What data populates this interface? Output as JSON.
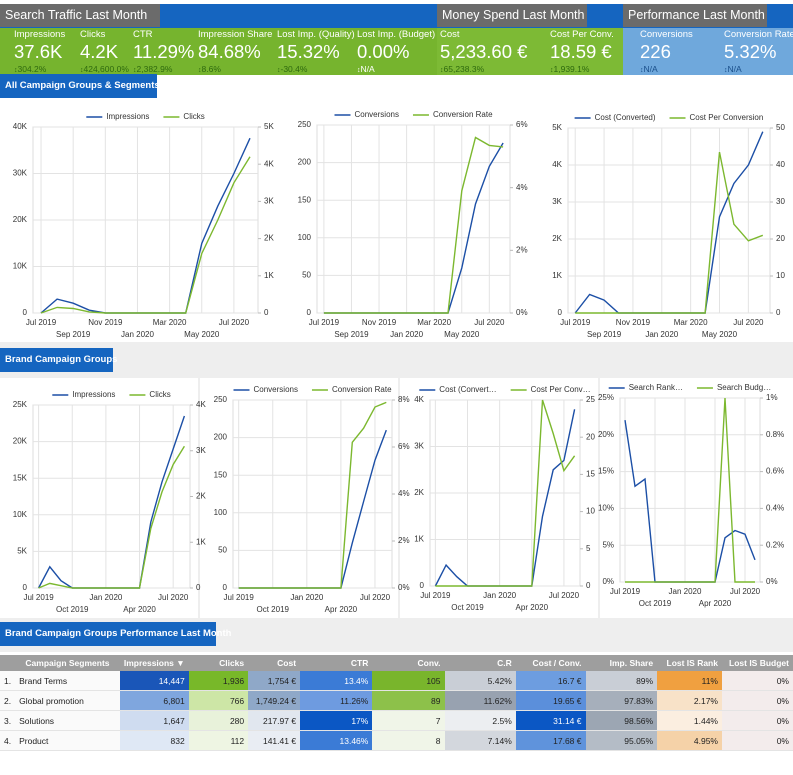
{
  "tabs": [
    "Search Traffic Last Month",
    "Money Spend Last Month",
    "Performance Last Month"
  ],
  "kpis": [
    {
      "label": "Impressions",
      "value": "37.6K",
      "change": "304.2%"
    },
    {
      "label": "Clicks",
      "value": "4.2K",
      "change": "424,600.0%"
    },
    {
      "label": "CTR",
      "value": "11.29%",
      "change": "2,382.9%"
    },
    {
      "label": "Impression Share",
      "value": "84.68%",
      "change": "8.6%"
    },
    {
      "label": "Lost Imp. (Quality)",
      "value": "15.32%",
      "change": "-30.4%"
    },
    {
      "label": "Lost Imp. (Budget)",
      "value": "0.00%",
      "change": "N/A"
    },
    {
      "label": "Cost",
      "value": "5,233.60 €",
      "change": "65,238.3%"
    },
    {
      "label": "Cost Per Conv.",
      "value": "18.59 €",
      "change": "1,939.1%"
    },
    {
      "label": "Conversions",
      "value": "226",
      "change": "N/A"
    },
    {
      "label": "Conversion Rate",
      "value": "5.32%",
      "change": "N/A"
    }
  ],
  "sections": [
    "All Campaign Groups & Segments",
    "Brand Campaign Groups",
    "Brand Campaign Groups Performance Last Month"
  ],
  "chart_data": [
    {
      "type": "line",
      "legend": "top",
      "grid": true,
      "categories": [
        "Jul 2019",
        null,
        "Sep 2019",
        null,
        "Nov 2019",
        null,
        "Jan 2020",
        null,
        "Mar 2020",
        null,
        "May 2020",
        null,
        "Jul 2020",
        null
      ],
      "ylim": [
        0,
        40000
      ],
      "yticks": [
        0,
        {
          "value": 10000,
          "label": "10K"
        },
        {
          "value": 20000,
          "label": "20K"
        },
        {
          "value": 30000,
          "label": "30K"
        },
        {
          "value": 40000,
          "label": "40K"
        }
      ],
      "y2lim": [
        0,
        5000
      ],
      "y2ticks": [
        0,
        {
          "value": 1000,
          "label": "1K"
        },
        {
          "value": 2000,
          "label": "2K"
        },
        {
          "value": 3000,
          "label": "3K"
        },
        {
          "value": 4000,
          "label": "4K"
        },
        {
          "value": 5000,
          "label": "5K"
        }
      ],
      "series": [
        {
          "name": "Impressions",
          "color": "#1c4fa6",
          "values": [
            0,
            3000,
            2100,
            600,
            0,
            0,
            0,
            0,
            0,
            0,
            15000,
            23000,
            30000,
            37600
          ]
        },
        {
          "name": "Clicks",
          "color": "#7cb82f",
          "axis": "y2",
          "values": [
            0,
            150,
            120,
            30,
            0,
            0,
            0,
            0,
            0,
            0,
            1600,
            2500,
            3500,
            4200
          ]
        }
      ]
    },
    {
      "type": "line",
      "legend": "top",
      "grid": true,
      "categories": [
        "Jul 2019",
        null,
        "Sep 2019",
        null,
        "Nov 2019",
        null,
        "Jan 2020",
        null,
        "Mar 2020",
        null,
        "May 2020",
        null,
        "Jul 2020",
        null
      ],
      "ylim": [
        0,
        250
      ],
      "yticks": [
        0,
        50,
        100,
        150,
        200,
        250
      ],
      "y2lim": [
        0,
        6
      ],
      "y2ticks": [
        {
          "value": 0,
          "label": "0%"
        },
        {
          "value": 2,
          "label": "2%"
        },
        {
          "value": 4,
          "label": "4%"
        },
        {
          "value": 6,
          "label": "6%"
        }
      ],
      "series": [
        {
          "name": "Conversions",
          "color": "#1c4fa6",
          "values": [
            0,
            0,
            0,
            0,
            0,
            0,
            0,
            0,
            0,
            0,
            60,
            145,
            195,
            226
          ]
        },
        {
          "name": "Conversion Rate",
          "color": "#7cb82f",
          "axis": "y2",
          "values": [
            0,
            0,
            0,
            0,
            0,
            0,
            0,
            0,
            0,
            0,
            3.9,
            5.6,
            5.35,
            5.3
          ]
        }
      ]
    },
    {
      "type": "line",
      "legend": "top",
      "grid": true,
      "categories": [
        "Jul 2019",
        null,
        "Sep 2019",
        null,
        "Nov 2019",
        null,
        "Jan 2020",
        null,
        "Mar 2020",
        null,
        "May 2020",
        null,
        "Jul 2020",
        null
      ],
      "ylim": [
        0,
        5000
      ],
      "yticks": [
        0,
        {
          "value": 1000,
          "label": "1K"
        },
        {
          "value": 2000,
          "label": "2K"
        },
        {
          "value": 3000,
          "label": "3K"
        },
        {
          "value": 4000,
          "label": "4K"
        },
        {
          "value": 5000,
          "label": "5K"
        }
      ],
      "y2lim": [
        0,
        50
      ],
      "y2ticks": [
        0,
        10,
        20,
        30,
        40,
        50
      ],
      "series": [
        {
          "name": "Cost (Converted)",
          "color": "#1c4fa6",
          "values": [
            0,
            500,
            350,
            0,
            0,
            0,
            0,
            0,
            0,
            0,
            2600,
            3500,
            4000,
            4900
          ]
        },
        {
          "name": "Cost Per Conversion",
          "color": "#7cb82f",
          "axis": "y2",
          "values": [
            0,
            0,
            0,
            0,
            0,
            0,
            0,
            0,
            0,
            0,
            43.5,
            24,
            19.5,
            21
          ]
        }
      ]
    },
    {
      "type": "line",
      "legend": "top",
      "grid": true,
      "categories": [
        "Jul 2019",
        null,
        null,
        "Oct 2019",
        null,
        null,
        "Jan 2020",
        null,
        null,
        "Apr 2020",
        null,
        null,
        "Jul 2020",
        null
      ],
      "ylim": [
        0,
        25000
      ],
      "yticks": [
        0,
        {
          "value": 5000,
          "label": "5K"
        },
        {
          "value": 10000,
          "label": "10K"
        },
        {
          "value": 15000,
          "label": "15K"
        },
        {
          "value": 20000,
          "label": "20K"
        },
        {
          "value": 25000,
          "label": "25K"
        }
      ],
      "y2lim": [
        0,
        4000
      ],
      "y2ticks": [
        0,
        {
          "value": 1000,
          "label": "1K"
        },
        {
          "value": 2000,
          "label": "2K"
        },
        {
          "value": 3000,
          "label": "3K"
        },
        {
          "value": 4000,
          "label": "4K"
        }
      ],
      "series": [
        {
          "name": "Impressions",
          "color": "#1c4fa6",
          "values": [
            0,
            2900,
            1000,
            0,
            0,
            0,
            0,
            0,
            0,
            0,
            9000,
            14500,
            19000,
            23500
          ]
        },
        {
          "name": "Clicks",
          "color": "#7cb82f",
          "axis": "y2",
          "values": [
            0,
            100,
            50,
            0,
            0,
            0,
            0,
            0,
            0,
            0,
            1300,
            2100,
            2700,
            3100
          ]
        }
      ]
    },
    {
      "type": "line",
      "legend": "top",
      "grid": true,
      "categories": [
        "Jul 2019",
        null,
        null,
        "Oct 2019",
        null,
        null,
        "Jan 2020",
        null,
        null,
        "Apr 2020",
        null,
        null,
        "Jul 2020",
        null
      ],
      "ylim": [
        0,
        250
      ],
      "yticks": [
        0,
        50,
        100,
        150,
        200,
        250
      ],
      "y2lim": [
        0,
        8
      ],
      "y2ticks": [
        {
          "value": 0,
          "label": "0%"
        },
        {
          "value": 2,
          "label": "2%"
        },
        {
          "value": 4,
          "label": "4%"
        },
        {
          "value": 6,
          "label": "6%"
        },
        {
          "value": 8,
          "label": "8%"
        }
      ],
      "series": [
        {
          "name": "Conversions",
          "color": "#1c4fa6",
          "values": [
            0,
            0,
            0,
            0,
            0,
            0,
            0,
            0,
            0,
            0,
            60,
            115,
            170,
            210
          ]
        },
        {
          "name": "Conversion Rate",
          "color": "#7cb82f",
          "axis": "y2",
          "values": [
            0,
            0,
            0,
            0,
            0,
            0,
            0,
            0,
            0,
            0,
            6.2,
            6.8,
            7.7,
            7.9
          ]
        }
      ]
    },
    {
      "type": "line",
      "legend": "top",
      "grid": true,
      "categories": [
        "Jul 2019",
        null,
        null,
        "Oct 2019",
        null,
        null,
        "Jan 2020",
        null,
        null,
        "Apr 2020",
        null,
        null,
        "Jul 2020",
        null
      ],
      "ylim": [
        0,
        4000
      ],
      "yticks": [
        0,
        {
          "value": 1000,
          "label": "1K"
        },
        {
          "value": 2000,
          "label": "2K"
        },
        {
          "value": 3000,
          "label": "3K"
        },
        {
          "value": 4000,
          "label": "4K"
        }
      ],
      "y2lim": [
        0,
        25
      ],
      "y2ticks": [
        0,
        5,
        10,
        15,
        20,
        25
      ],
      "series": [
        {
          "name": "Cost (Convert…",
          "color": "#1c4fa6",
          "values": [
            0,
            450,
            200,
            0,
            0,
            0,
            0,
            0,
            0,
            0,
            1500,
            2500,
            2700,
            3800
          ]
        },
        {
          "name": "Cost Per Conv…",
          "color": "#7cb82f",
          "axis": "y2",
          "values": [
            0,
            0,
            0,
            0,
            0,
            0,
            0,
            0,
            0,
            0,
            25,
            20.5,
            15.5,
            17.5
          ]
        }
      ]
    },
    {
      "type": "line",
      "legend": "top",
      "grid": true,
      "categories": [
        "Jul 2019",
        null,
        null,
        "Oct 2019",
        null,
        null,
        "Jan 2020",
        null,
        null,
        "Apr 2020",
        null,
        null,
        "Jul 2020",
        null
      ],
      "ylim": [
        0,
        25
      ],
      "yticks": [
        {
          "value": 0,
          "label": "0%"
        },
        {
          "value": 5,
          "label": "5%"
        },
        {
          "value": 10,
          "label": "10%"
        },
        {
          "value": 15,
          "label": "15%"
        },
        {
          "value": 20,
          "label": "20%"
        },
        {
          "value": 25,
          "label": "25%"
        }
      ],
      "y2lim": [
        0,
        1
      ],
      "y2ticks": [
        {
          "value": 0,
          "label": "0%"
        },
        {
          "value": 0.2,
          "label": "0.2%"
        },
        {
          "value": 0.4,
          "label": "0.4%"
        },
        {
          "value": 0.6,
          "label": "0.6%"
        },
        {
          "value": 0.8,
          "label": "0.8%"
        },
        {
          "value": 1,
          "label": "1%"
        }
      ],
      "series": [
        {
          "name": "Search Rank…",
          "color": "#1c4fa6",
          "values": [
            22,
            13,
            14,
            0,
            0,
            0,
            0,
            0,
            0,
            0,
            6,
            7,
            6.5,
            3
          ]
        },
        {
          "name": "Search Budg…",
          "color": "#7cb82f",
          "axis": "y2",
          "values": [
            0,
            0,
            0,
            0,
            0,
            0,
            0,
            0,
            0,
            0,
            1,
            0,
            0,
            0
          ]
        }
      ]
    }
  ],
  "table": {
    "columns": [
      "Campaign Segments",
      "Impressions ▼",
      "Clicks",
      "Cost",
      "CTR",
      "Conv.",
      "C.R",
      "Cost / Conv.",
      "Imp. Share",
      "Lost IS Rank",
      "Lost IS Budget"
    ],
    "rows": [
      {
        "number": "1.",
        "cells": [
          "Brand Terms",
          "14,447",
          "1,936",
          "1,754 €",
          "13.4%",
          "105",
          "5.42%",
          "16.7 €",
          "89%",
          "11%",
          "0%"
        ],
        "colors": [
          "#1a56b8",
          "#78b829",
          "#8fa8c8",
          "#3b7bd6",
          "#79b52c",
          "#c9ced6",
          "#6d9de0",
          "#c9ced6",
          "#f0a040",
          "#f3ecec"
        ]
      },
      {
        "number": "2.",
        "cells": [
          "Global promotion",
          "6,801",
          "766",
          "1,749.24 €",
          "11.26%",
          "89",
          "11.62%",
          "19.65 €",
          "97.83%",
          "2.17%",
          "0%"
        ],
        "colors": [
          "#7fa6de",
          "#cde6a6",
          "#8fa8c8",
          "#6e9be0",
          "#8dc14a",
          "#98a2b0",
          "#5b8fdb",
          "#a6afbb",
          "#f8e2c8",
          "#f3ecec"
        ]
      },
      {
        "number": "3.",
        "cells": [
          "Solutions",
          "1,647",
          "280",
          "217.97 €",
          "17%",
          "7",
          "2.5%",
          "31.14 €",
          "98.56%",
          "1.44%",
          "0%"
        ],
        "colors": [
          "#cfdcf0",
          "#e8f2da",
          "#e1e7ef",
          "#0b57c4",
          "#f0f5e8",
          "#eceef1",
          "#0b57c4",
          "#9ca6b3",
          "#fbeee0",
          "#f3ecec"
        ]
      },
      {
        "number": "4.",
        "cells": [
          "Product",
          "832",
          "112",
          "141.41 €",
          "13.46%",
          "8",
          "7.14%",
          "17.68 €",
          "95.05%",
          "4.95%",
          "0%"
        ],
        "colors": [
          "#dfe8f5",
          "#eef5e3",
          "#e9edf3",
          "#3b7bd6",
          "#f0f5e8",
          "#d3d7dd",
          "#5f93dc",
          "#b4bcc6",
          "#f5d2a8",
          "#f3ecec"
        ]
      }
    ]
  }
}
